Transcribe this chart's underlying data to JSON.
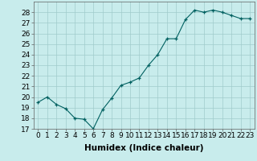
{
  "x": [
    0,
    1,
    2,
    3,
    4,
    5,
    6,
    7,
    8,
    9,
    10,
    11,
    12,
    13,
    14,
    15,
    16,
    17,
    18,
    19,
    20,
    21,
    22,
    23
  ],
  "y": [
    19.5,
    20.0,
    19.3,
    18.9,
    18.0,
    17.9,
    17.0,
    18.8,
    19.9,
    21.1,
    21.4,
    21.8,
    23.0,
    24.0,
    25.5,
    25.5,
    27.3,
    28.2,
    28.0,
    28.2,
    28.0,
    27.7,
    27.4,
    27.4
  ],
  "xlabel": "Humidex (Indice chaleur)",
  "ylabel": "",
  "title": "",
  "line_color": "#006060",
  "marker_color": "#006060",
  "bg_color": "#c8ecec",
  "grid_color": "#a0cccc",
  "ylim": [
    17,
    29
  ],
  "xlim": [
    -0.5,
    23.5
  ],
  "yticks": [
    17,
    18,
    19,
    20,
    21,
    22,
    23,
    24,
    25,
    26,
    27,
    28
  ],
  "xticks": [
    0,
    1,
    2,
    3,
    4,
    5,
    6,
    7,
    8,
    9,
    10,
    11,
    12,
    13,
    14,
    15,
    16,
    17,
    18,
    19,
    20,
    21,
    22,
    23
  ],
  "xlabel_fontsize": 7.5,
  "tick_fontsize": 6.5
}
